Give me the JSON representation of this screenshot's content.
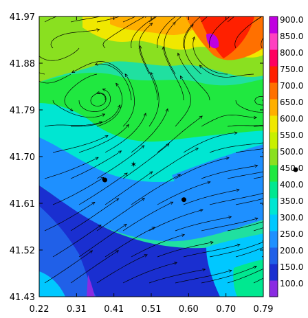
{
  "map": {
    "x_ticks": [
      "0.22",
      "0.31",
      "0.41",
      "0.51",
      "0.60",
      "0.70",
      "0.79"
    ],
    "y_ticks": [
      "41.97",
      "41.88",
      "41.79",
      "41.70",
      "41.61",
      "41.52",
      "41.43"
    ],
    "xlim": [
      0.22,
      0.79
    ],
    "ylim": [
      41.43,
      41.97
    ]
  },
  "colorbar": {
    "levels": [
      "100.0",
      "150.0",
      "200.0",
      "250.0",
      "300.0",
      "350.0",
      "400.0",
      "450.0",
      "500.0",
      "550.0",
      "600.0",
      "650.0",
      "700.0",
      "750.0",
      "800.0",
      "850.0",
      "900.0"
    ],
    "colors": [
      "#8a2be2",
      "#1a2fd0",
      "#2060e8",
      "#1e90ff",
      "#00c8ff",
      "#00e6d2",
      "#00e890",
      "#20e840",
      "#8ae020",
      "#c8f000",
      "#f0e800",
      "#ffb000",
      "#ff7000",
      "#ff2000",
      "#ff0060",
      "#ff40c0",
      "#c000e0"
    ]
  },
  "markers": [
    {
      "type": "dot",
      "x": 0.387,
      "y": 41.655
    },
    {
      "type": "dot",
      "x": 0.588,
      "y": 41.617
    },
    {
      "type": "star",
      "x": 0.46,
      "y": 41.685
    }
  ]
}
